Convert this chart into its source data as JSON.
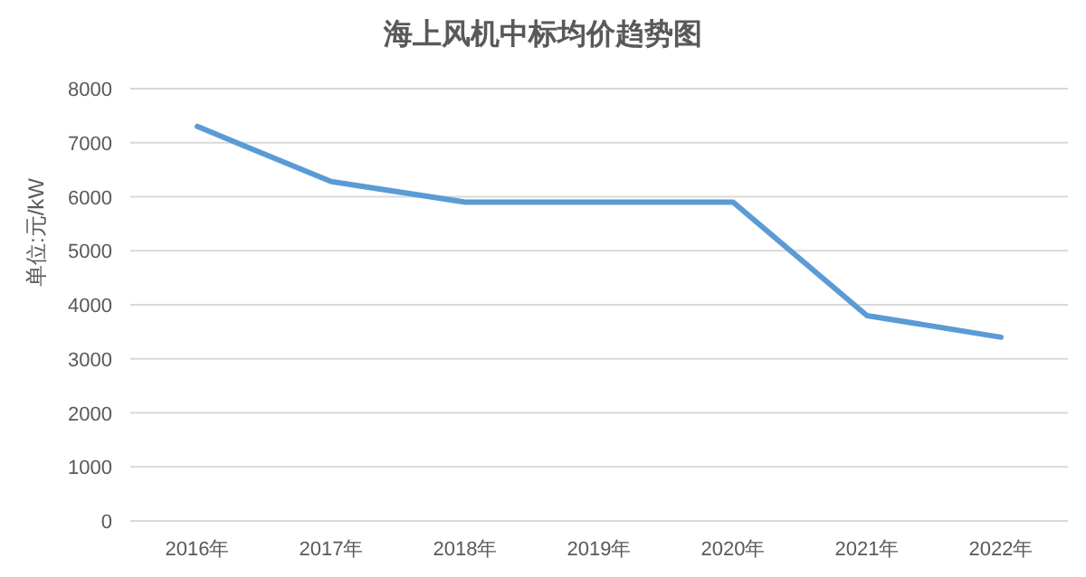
{
  "chart_data": {
    "type": "line",
    "title": "海上风机中标均价趋势图",
    "ylabel": "单位:元/kW",
    "categories": [
      "2016年",
      "2017年",
      "2018年",
      "2019年",
      "2020年",
      "2021年",
      "2022年"
    ],
    "series": [
      {
        "color": "#5b9bd5",
        "values": [
          7300,
          6280,
          5900,
          5900,
          5900,
          3800,
          3400
        ]
      }
    ],
    "ylim": [
      0,
      8000
    ],
    "yticks": [
      0,
      1000,
      2000,
      3000,
      4000,
      5000,
      6000,
      7000,
      8000
    ],
    "grid": "y",
    "marker": "none",
    "line_style": "solid"
  }
}
